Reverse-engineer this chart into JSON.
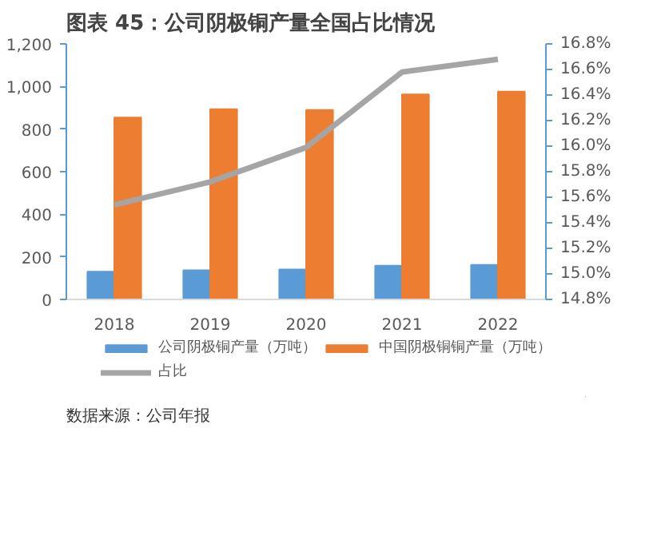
{
  "chart_data": {
    "type": "bar",
    "title": "图表 45：公司阴极铜产量全国占比情况",
    "categories": [
      "2018",
      "2019",
      "2020",
      "2021",
      "2022"
    ],
    "series": [
      {
        "name": "公司阴极铜产量（万吨）",
        "color": "#5b9bd5",
        "values": [
          130,
          137,
          141,
          158,
          162
        ]
      },
      {
        "name": "中国阴极铜铜产量（万吨）",
        "color": "#ed7d31",
        "values": [
          854,
          893,
          890,
          963,
          976
        ]
      },
      {
        "name": "占比",
        "type": "line",
        "axis": "y2",
        "color": "#a5a5a5",
        "values": [
          15.54,
          15.72,
          15.99,
          16.58,
          16.68
        ]
      }
    ],
    "ylim": [
      0,
      1200
    ],
    "yticks": [
      0,
      {
        "value": 200,
        "label": "200"
      },
      {
        "value": 400,
        "label": "400"
      },
      {
        "value": 600,
        "label": "600"
      },
      {
        "value": 800,
        "label": "800"
      },
      {
        "value": 1000,
        "label": "1,000"
      },
      {
        "value": 1200,
        "label": "1,200"
      }
    ],
    "y2lim": [
      14.8,
      16.8
    ],
    "y2ticks": [
      {
        "value": 14.8,
        "label": "14.8%"
      },
      {
        "value": 15.0,
        "label": "15.0%"
      },
      {
        "value": 15.2,
        "label": "15.2%"
      },
      {
        "value": 15.4,
        "label": "15.4%"
      },
      {
        "value": 15.6,
        "label": "15.6%"
      },
      {
        "value": 15.8,
        "label": "15.8%"
      },
      {
        "value": 16.0,
        "label": "16.0%"
      },
      {
        "value": 16.2,
        "label": "16.2%"
      },
      {
        "value": 16.4,
        "label": "16.4%"
      },
      {
        "value": 16.6,
        "label": "16.6%"
      },
      {
        "value": 16.8,
        "label": "16.8%"
      }
    ],
    "grid": false,
    "legend": "bottom",
    "marker": "none",
    "line_style": "solid",
    "annotations": [
      "数据来源：公司年报"
    ]
  }
}
